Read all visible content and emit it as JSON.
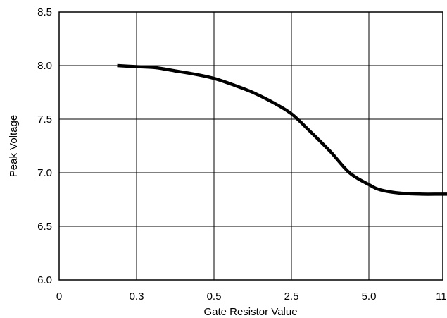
{
  "chart_data": {
    "type": "line",
    "title": "",
    "xlabel": "Gate Resistor Value",
    "ylabel": "Peak Voltage",
    "x_tick_labels": [
      "0",
      "0.3",
      "0.5",
      "2.5",
      "5.0",
      "11"
    ],
    "y_tick_labels": [
      "6.0",
      "6.5",
      "7.0",
      "7.5",
      "8.0",
      "8.5"
    ],
    "ylim": [
      6.0,
      8.5
    ],
    "x_scale": "categorical (equally spaced tick positions)",
    "grid": true,
    "series": [
      {
        "points": [
          {
            "x_pos": 0.75,
            "y": 8.0
          },
          {
            "x_pos": 1.0,
            "y": 7.99
          },
          {
            "x_pos": 1.25,
            "y": 7.98
          },
          {
            "x_pos": 1.5,
            "y": 7.95
          },
          {
            "x_pos": 1.75,
            "y": 7.92
          },
          {
            "x_pos": 2.0,
            "y": 7.88
          },
          {
            "x_pos": 2.25,
            "y": 7.82
          },
          {
            "x_pos": 2.5,
            "y": 7.75
          },
          {
            "x_pos": 2.75,
            "y": 7.66
          },
          {
            "x_pos": 3.0,
            "y": 7.55
          },
          {
            "x_pos": 3.25,
            "y": 7.38
          },
          {
            "x_pos": 3.5,
            "y": 7.2
          },
          {
            "x_pos": 3.75,
            "y": 7.0
          },
          {
            "x_pos": 4.0,
            "y": 6.89
          },
          {
            "x_pos": 4.15,
            "y": 6.84
          },
          {
            "x_pos": 4.4,
            "y": 6.81
          },
          {
            "x_pos": 4.7,
            "y": 6.8
          },
          {
            "x_pos": 5.0,
            "y": 6.8
          },
          {
            "x_pos": 5.3,
            "y": 6.79
          },
          {
            "x_pos": 5.55,
            "y": 6.79
          }
        ]
      }
    ]
  }
}
